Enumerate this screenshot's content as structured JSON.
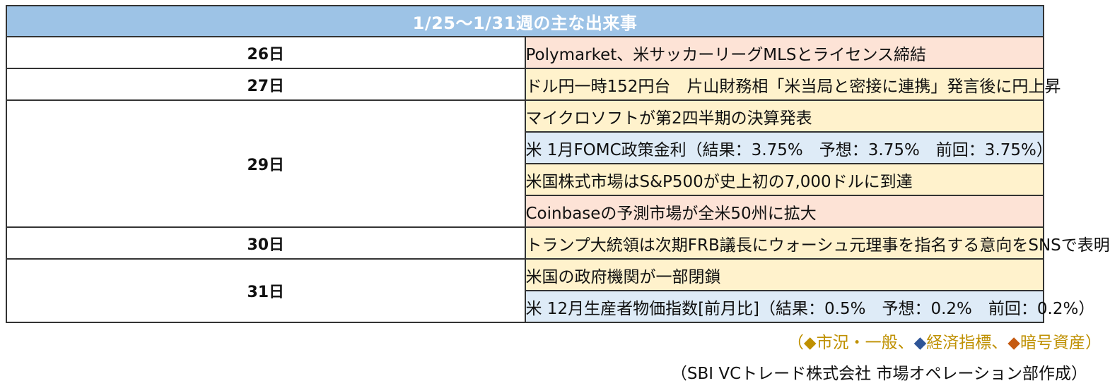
{
  "title": "1/25〜1/31週の主な出来事",
  "rows": [
    {
      "day": "26日",
      "events": [
        {
          "text": "Polymarket、米サッカーリーグMLSとライセンス締結",
          "category": "crypto"
        }
      ]
    },
    {
      "day": "27日",
      "events": [
        {
          "text": "ドル円一時152円台　片山財務相「米当局と密接に連携」発言後に円上昇",
          "category": "general"
        }
      ]
    },
    {
      "day": "29日",
      "events": [
        {
          "text": "マイクロソフトが第2四半期の決算発表",
          "category": "general"
        },
        {
          "text": "米 1月FOMC政策金利（結果：3.75%　予想：3.75%　前回：3.75%）",
          "category": "econ"
        },
        {
          "text": "米国株式市場はS&P500が史上初の7,000ドルに到達",
          "category": "general"
        },
        {
          "text": "Coinbaseの予測市場が全米50州に拡大",
          "category": "crypto"
        }
      ]
    },
    {
      "day": "30日",
      "events": [
        {
          "text": "トランプ大統領は次期FRB議長にウォーシュ元理事を指名する意向をSNSで表明",
          "category": "general"
        }
      ]
    },
    {
      "day": "31日",
      "events": [
        {
          "text": "米国の政府機関が一部閉鎖",
          "category": "general"
        },
        {
          "text": "米 12月生産者物価指数[前月比]（結果：0.5%　予想：0.2%　前回：0.2%）",
          "category": "econ"
        }
      ]
    }
  ],
  "legend": {
    "open": "（",
    "general_marker": "◆",
    "general_label": "市況・一般",
    "sep1": "、",
    "econ_marker": "◆",
    "econ_label": "経済指標",
    "sep2": "、",
    "crypto_marker": "◆",
    "crypto_label": "暗号資産",
    "close": "）"
  },
  "credit": "（SBI VCトレード株式会社 市場オペレーション部作成）",
  "colors": {
    "general": "#fff2cc",
    "econ": "#deebf7",
    "crypto": "#fde3d6",
    "header": "#9dc3e6"
  }
}
